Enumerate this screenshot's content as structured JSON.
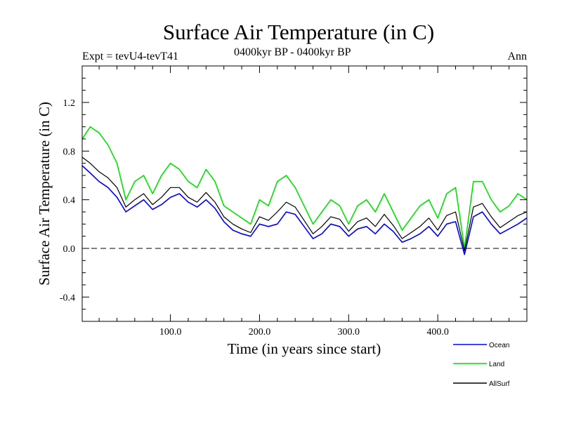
{
  "header": {
    "title": "Surface Air Temperature (in C)",
    "expt": "Expt = tevU4-tevT41",
    "period": "0400kyr BP - 0400kyr BP",
    "season": "Ann"
  },
  "colors": {
    "ocean": "#0000ff",
    "land": "#00e400",
    "allsurf": "#000000",
    "zero_line": "#000000"
  },
  "chart_data": {
    "type": "line",
    "title": "Surface Air Temperature (in C)",
    "xlabel": "Time (in years since start)",
    "ylabel": "Surface Air Temperature (in C)",
    "xlim": [
      1,
      500
    ],
    "ylim": [
      -0.6,
      1.5
    ],
    "x_ticks": [
      100,
      200,
      300,
      400
    ],
    "x_tick_labels": [
      "100.0",
      "200.0",
      "300.0",
      "400.0"
    ],
    "y_ticks": [
      -0.4,
      0.0,
      0.4,
      0.8,
      1.2
    ],
    "y_tick_labels": [
      "-0.4",
      "0.0",
      "0.4",
      "0.8",
      "1.2"
    ],
    "reference_line": {
      "y": 0.0,
      "style": "dashed"
    },
    "legend_position": "bottom-right, below plot",
    "grid": false,
    "x": [
      1,
      10,
      20,
      30,
      40,
      50,
      60,
      70,
      80,
      90,
      100,
      110,
      120,
      130,
      140,
      150,
      160,
      170,
      180,
      190,
      200,
      210,
      220,
      230,
      240,
      250,
      260,
      270,
      280,
      290,
      300,
      310,
      320,
      330,
      340,
      350,
      360,
      370,
      380,
      390,
      400,
      410,
      420,
      430,
      440,
      450,
      460,
      470,
      480,
      490,
      500
    ],
    "series": [
      {
        "name": "Ocean",
        "color": "#0000ff",
        "values": [
          0.68,
          0.62,
          0.55,
          0.5,
          0.42,
          0.3,
          0.35,
          0.4,
          0.32,
          0.36,
          0.42,
          0.45,
          0.38,
          0.34,
          0.4,
          0.33,
          0.22,
          0.15,
          0.12,
          0.1,
          0.2,
          0.18,
          0.2,
          0.3,
          0.28,
          0.18,
          0.08,
          0.12,
          0.2,
          0.18,
          0.1,
          0.16,
          0.18,
          0.12,
          0.2,
          0.14,
          0.05,
          0.08,
          0.12,
          0.18,
          0.1,
          0.2,
          0.22,
          -0.05,
          0.26,
          0.3,
          0.2,
          0.12,
          0.16,
          0.2,
          0.25
        ]
      },
      {
        "name": "Land",
        "color": "#00e400",
        "values": [
          0.9,
          1.0,
          0.95,
          0.85,
          0.7,
          0.4,
          0.55,
          0.6,
          0.45,
          0.6,
          0.7,
          0.65,
          0.55,
          0.5,
          0.65,
          0.55,
          0.35,
          0.3,
          0.25,
          0.2,
          0.4,
          0.35,
          0.55,
          0.6,
          0.5,
          0.35,
          0.2,
          0.3,
          0.4,
          0.35,
          0.2,
          0.35,
          0.4,
          0.3,
          0.45,
          0.3,
          0.15,
          0.25,
          0.35,
          0.4,
          0.25,
          0.45,
          0.5,
          0.0,
          0.55,
          0.55,
          0.4,
          0.3,
          0.35,
          0.45,
          0.4
        ]
      },
      {
        "name": "AllSurf",
        "color": "#000000",
        "values": [
          0.75,
          0.7,
          0.63,
          0.58,
          0.5,
          0.34,
          0.4,
          0.45,
          0.36,
          0.42,
          0.5,
          0.5,
          0.42,
          0.38,
          0.46,
          0.38,
          0.26,
          0.2,
          0.16,
          0.13,
          0.26,
          0.23,
          0.3,
          0.38,
          0.34,
          0.23,
          0.12,
          0.18,
          0.26,
          0.24,
          0.14,
          0.22,
          0.25,
          0.18,
          0.28,
          0.19,
          0.08,
          0.13,
          0.18,
          0.25,
          0.15,
          0.27,
          0.3,
          -0.02,
          0.34,
          0.37,
          0.26,
          0.17,
          0.22,
          0.27,
          0.3
        ]
      }
    ]
  }
}
